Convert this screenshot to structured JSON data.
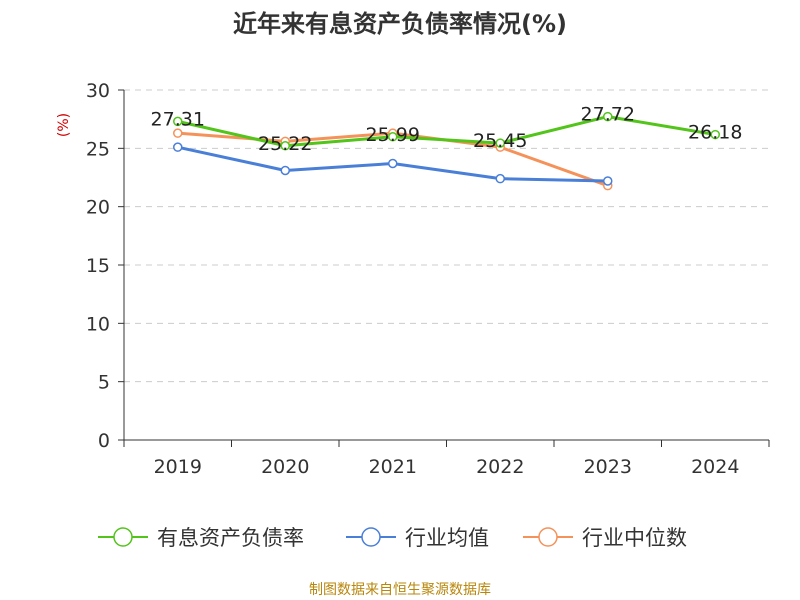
{
  "title": "近年来有息资产负债率情况(%)",
  "source": "制图数据来自恒生聚源数据库",
  "colors": {
    "debt_ratio": "#52c41a",
    "industry_avg": "#4a7fd8",
    "industry_median": "#f5925a",
    "ylabel": "#cc0000"
  },
  "chart_data": {
    "type": "line",
    "ylabel": "(%)",
    "ylim": [
      0,
      30
    ],
    "yticks": [
      0,
      5,
      10,
      15,
      20,
      25,
      30
    ],
    "grid": true,
    "legend_position": "bottom",
    "categories": [
      "2019",
      "2020",
      "2021",
      "2022",
      "2023",
      "2024"
    ],
    "series": [
      {
        "name": "有息资产负债率",
        "color": "#52c41a",
        "values": [
          27.31,
          25.22,
          25.99,
          25.45,
          27.72,
          26.18
        ],
        "labels": [
          "27.31",
          "25.22",
          "25.99",
          "25.45",
          "27.72",
          "26.18"
        ]
      },
      {
        "name": "行业均值",
        "color": "#4a7fd8",
        "values": [
          25.1,
          23.1,
          23.7,
          22.4,
          22.2,
          null
        ],
        "labels": []
      },
      {
        "name": "行业中位数",
        "color": "#f5925a",
        "values": [
          26.3,
          25.6,
          26.3,
          25.1,
          21.8,
          null
        ],
        "labels": []
      }
    ]
  }
}
